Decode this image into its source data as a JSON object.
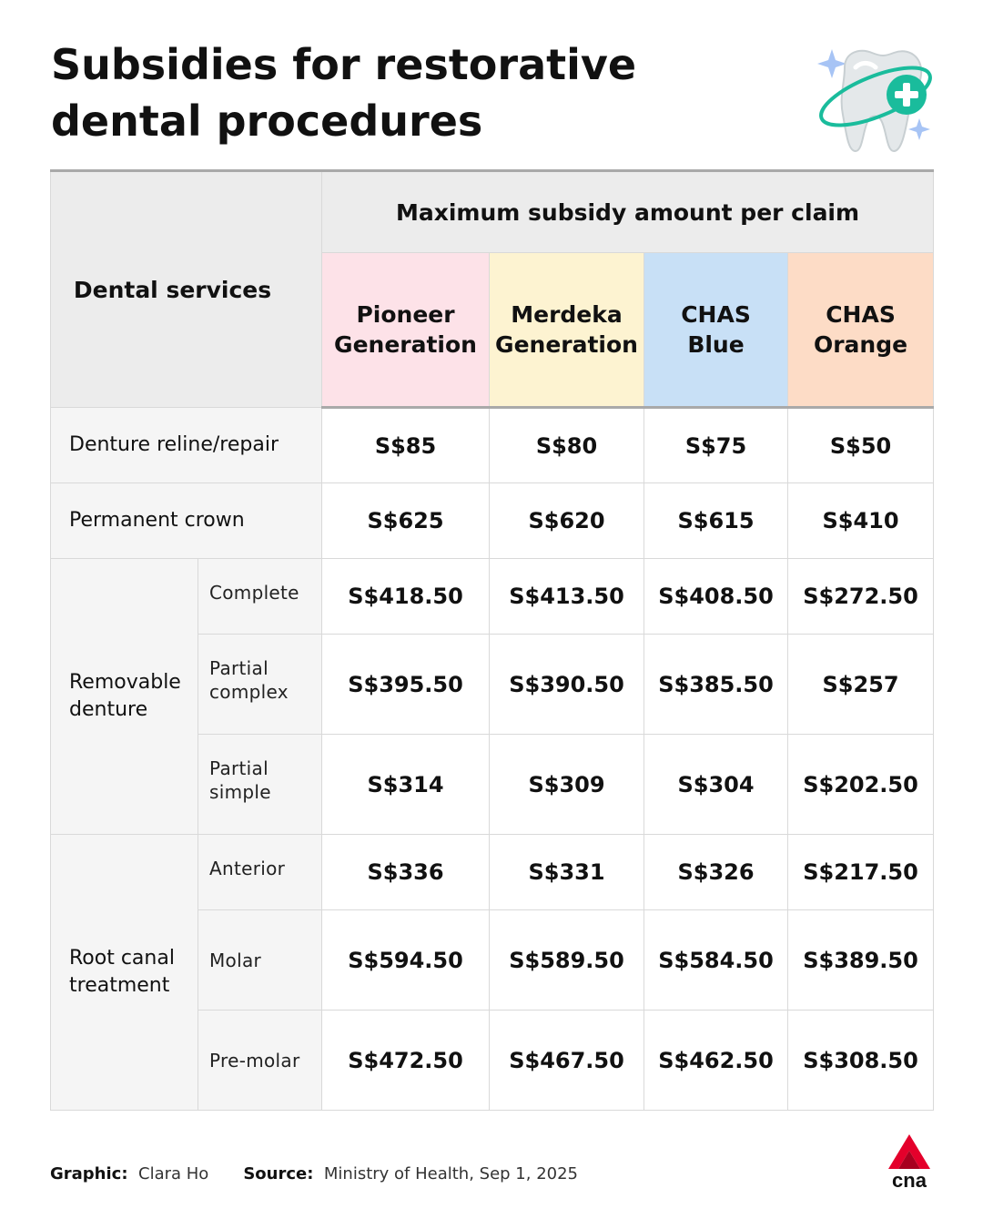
{
  "title": "Subsidies for restorative dental procedures",
  "header": {
    "service_label": "Dental services",
    "group_label": "Maximum subsidy amount per claim",
    "columns": [
      {
        "line1": "Pioneer",
        "line2": "Generation",
        "color": "#fde2e8"
      },
      {
        "line1": "Merdeka",
        "line2": "Generation",
        "color": "#fdf3d1"
      },
      {
        "line1": "CHAS",
        "line2": "Blue",
        "color": "#c8e0f6"
      },
      {
        "line1": "CHAS",
        "line2": "Orange",
        "color": "#fddcc6"
      }
    ]
  },
  "rows": {
    "denture_reline": {
      "label": "Denture reline/repair",
      "values": [
        "S$85",
        "S$80",
        "S$75",
        "S$50"
      ]
    },
    "permanent_crown": {
      "label": "Permanent crown",
      "values": [
        "S$625",
        "S$620",
        "S$615",
        "S$410"
      ]
    },
    "removable_denture": {
      "label_line1": "Removable",
      "label_line2": "denture",
      "complete": {
        "label": "Complete",
        "values": [
          "S$418.50",
          "S$413.50",
          "S$408.50",
          "S$272.50"
        ]
      },
      "partial_complex": {
        "label_line1": "Partial",
        "label_line2": "complex",
        "values": [
          "S$395.50",
          "S$390.50",
          "S$385.50",
          "S$257"
        ]
      },
      "partial_simple": {
        "label_line1": "Partial",
        "label_line2": "simple",
        "values": [
          "S$314",
          "S$309",
          "S$304",
          "S$202.50"
        ]
      }
    },
    "root_canal": {
      "label_line1": "Root canal",
      "label_line2": "treatment",
      "anterior": {
        "label": "Anterior",
        "values": [
          "S$336",
          "S$331",
          "S$326",
          "S$217.50"
        ]
      },
      "molar": {
        "label": "Molar",
        "values": [
          "S$594.50",
          "S$589.50",
          "S$584.50",
          "S$389.50"
        ]
      },
      "pre_molar": {
        "label": "Pre-molar",
        "values": [
          "S$472.50",
          "S$467.50",
          "S$462.50",
          "S$308.50"
        ]
      }
    }
  },
  "footer": {
    "graphic_label": "Graphic:",
    "graphic_value": "Clara Ho",
    "source_label": "Source:",
    "source_value": "Ministry of Health, Sep 1, 2025"
  },
  "logo": {
    "text": "cna",
    "color": "#e4002b"
  },
  "icons": {
    "tooth": "tooth-with-plus-icon"
  },
  "colors": {
    "teal": "#1abc9c",
    "sparkle": "#a7c4f5"
  }
}
